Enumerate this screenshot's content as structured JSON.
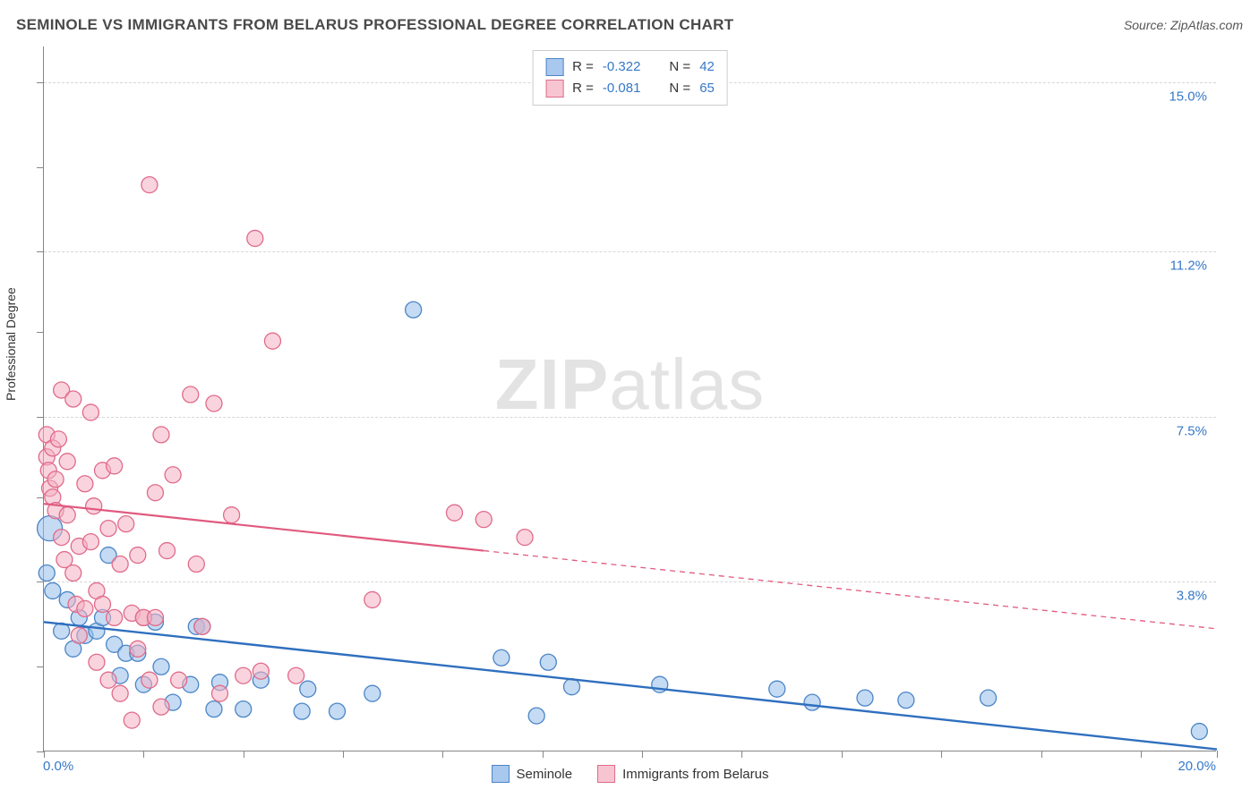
{
  "header": {
    "title": "SEMINOLE VS IMMIGRANTS FROM BELARUS PROFESSIONAL DEGREE CORRELATION CHART",
    "source_label": "Source: ",
    "source_value": "ZipAtlas.com"
  },
  "chart": {
    "type": "scatter",
    "ylabel": "Professional Degree",
    "x_left_label": "0.0%",
    "x_right_label": "20.0%",
    "xlim": [
      0,
      20
    ],
    "ylim": [
      0,
      15.8
    ],
    "grid_color": "#d7d7d7",
    "axis_color": "#868686",
    "background_color": "#ffffff",
    "y_gridlines": [
      {
        "value": 3.8,
        "label": "3.8%"
      },
      {
        "value": 7.5,
        "label": "7.5%"
      },
      {
        "value": 11.2,
        "label": "11.2%"
      },
      {
        "value": 15.0,
        "label": "15.0%"
      }
    ],
    "x_ticks": [
      0,
      1.7,
      3.4,
      5.1,
      6.8,
      8.5,
      10.2,
      11.9,
      13.6,
      15.3,
      17.0,
      18.7,
      20.0
    ],
    "y_ticks": [
      0,
      1.9,
      3.8,
      5.7,
      7.5,
      9.4,
      11.2,
      13.1,
      15.0
    ],
    "watermark_zip": "ZIP",
    "watermark_atlas": "atlas",
    "legend_top": [
      {
        "swatch_fill": "#a9c8ee",
        "swatch_border": "#4c85c7",
        "r_label": "R = ",
        "r_value": "-0.322",
        "n_label": "N = ",
        "n_value": "42"
      },
      {
        "swatch_fill": "#f7c5d2",
        "swatch_border": "#e06b8a",
        "r_label": "R = ",
        "r_value": "-0.081",
        "n_label": "N = ",
        "n_value": "65"
      }
    ],
    "legend_bottom": [
      {
        "swatch_fill": "#a9c8ee",
        "swatch_border": "#4c85c7",
        "label": "Seminole"
      },
      {
        "swatch_fill": "#f7c5d2",
        "swatch_border": "#e06b8a",
        "label": "Immigrants from Belarus"
      }
    ],
    "series": [
      {
        "name": "Seminole",
        "marker_fill": "rgba(147,190,234,0.55)",
        "marker_stroke": "#4c85c7",
        "marker_radius": 9,
        "trend": {
          "x1": 0,
          "y1": 2.9,
          "x2": 20,
          "y2": 0.05,
          "stroke": "#2f6fbf",
          "width": 2.4,
          "solid_until": 20
        },
        "points": [
          [
            0.1,
            5.0,
            14
          ],
          [
            0.05,
            4.0
          ],
          [
            0.15,
            3.6
          ],
          [
            0.4,
            3.4
          ],
          [
            0.3,
            2.7
          ],
          [
            0.6,
            3.0
          ],
          [
            0.7,
            2.6
          ],
          [
            0.5,
            2.3
          ],
          [
            0.9,
            2.7
          ],
          [
            1.0,
            3.0
          ],
          [
            1.1,
            4.4
          ],
          [
            1.2,
            2.4
          ],
          [
            1.3,
            1.7
          ],
          [
            1.4,
            2.2
          ],
          [
            1.6,
            2.2
          ],
          [
            1.7,
            1.5
          ],
          [
            1.9,
            2.9
          ],
          [
            2.0,
            1.9
          ],
          [
            2.2,
            1.1
          ],
          [
            2.5,
            1.5
          ],
          [
            2.6,
            2.8
          ],
          [
            2.7,
            2.8
          ],
          [
            2.9,
            0.95
          ],
          [
            3.0,
            1.55
          ],
          [
            3.4,
            0.95
          ],
          [
            3.7,
            1.6
          ],
          [
            4.4,
            0.9
          ],
          [
            4.5,
            1.4
          ],
          [
            5.0,
            0.9
          ],
          [
            5.6,
            1.3
          ],
          [
            6.3,
            9.9
          ],
          [
            7.8,
            2.1
          ],
          [
            8.4,
            0.8
          ],
          [
            8.6,
            2.0
          ],
          [
            9.0,
            1.45
          ],
          [
            10.5,
            1.5
          ],
          [
            12.5,
            1.4
          ],
          [
            13.1,
            1.1
          ],
          [
            14.0,
            1.2
          ],
          [
            14.7,
            1.15
          ],
          [
            16.1,
            1.2
          ],
          [
            19.7,
            0.45
          ]
        ]
      },
      {
        "name": "Immigrants from Belarus",
        "marker_fill": "rgba(244,177,195,0.55)",
        "marker_stroke": "#e06b8a",
        "marker_radius": 9,
        "trend": {
          "x1": 0,
          "y1": 5.55,
          "x2": 20,
          "y2": 2.75,
          "stroke": "#e05a7e",
          "width": 2.2,
          "solid_until": 7.5
        },
        "points": [
          [
            0.05,
            7.1
          ],
          [
            0.05,
            6.6
          ],
          [
            0.08,
            6.3
          ],
          [
            0.1,
            5.9
          ],
          [
            0.15,
            5.7
          ],
          [
            0.15,
            6.8
          ],
          [
            0.2,
            6.1
          ],
          [
            0.2,
            5.4
          ],
          [
            0.25,
            7.0
          ],
          [
            0.3,
            8.1
          ],
          [
            0.3,
            4.8
          ],
          [
            0.35,
            4.3
          ],
          [
            0.4,
            5.3
          ],
          [
            0.4,
            6.5
          ],
          [
            0.5,
            7.9
          ],
          [
            0.5,
            4.0
          ],
          [
            0.55,
            3.3
          ],
          [
            0.6,
            4.6
          ],
          [
            0.6,
            2.6
          ],
          [
            0.7,
            6.0
          ],
          [
            0.7,
            3.2
          ],
          [
            0.8,
            7.6
          ],
          [
            0.8,
            4.7
          ],
          [
            0.85,
            5.5
          ],
          [
            0.9,
            3.6
          ],
          [
            0.9,
            2.0
          ],
          [
            1.0,
            6.3
          ],
          [
            1.0,
            3.3
          ],
          [
            1.1,
            5.0
          ],
          [
            1.1,
            1.6
          ],
          [
            1.2,
            6.4
          ],
          [
            1.2,
            3.0
          ],
          [
            1.3,
            4.2
          ],
          [
            1.3,
            1.3
          ],
          [
            1.4,
            5.1
          ],
          [
            1.5,
            3.1
          ],
          [
            1.5,
            0.7
          ],
          [
            1.6,
            4.4
          ],
          [
            1.6,
            2.3
          ],
          [
            1.7,
            3.0
          ],
          [
            1.7,
            3.0
          ],
          [
            1.8,
            12.7
          ],
          [
            1.8,
            1.6
          ],
          [
            1.9,
            5.8
          ],
          [
            1.9,
            3.0
          ],
          [
            2.0,
            7.1
          ],
          [
            2.0,
            1.0
          ],
          [
            2.1,
            4.5
          ],
          [
            2.2,
            6.2
          ],
          [
            2.3,
            1.6
          ],
          [
            2.5,
            8.0
          ],
          [
            2.6,
            4.2
          ],
          [
            2.7,
            2.8
          ],
          [
            2.9,
            7.8
          ],
          [
            3.0,
            1.3
          ],
          [
            3.2,
            5.3
          ],
          [
            3.4,
            1.7
          ],
          [
            3.6,
            11.5
          ],
          [
            3.7,
            1.8
          ],
          [
            3.9,
            9.2
          ],
          [
            4.3,
            1.7
          ],
          [
            5.6,
            3.4
          ],
          [
            7.0,
            5.35
          ],
          [
            7.5,
            5.2
          ],
          [
            8.2,
            4.8
          ]
        ]
      }
    ]
  }
}
